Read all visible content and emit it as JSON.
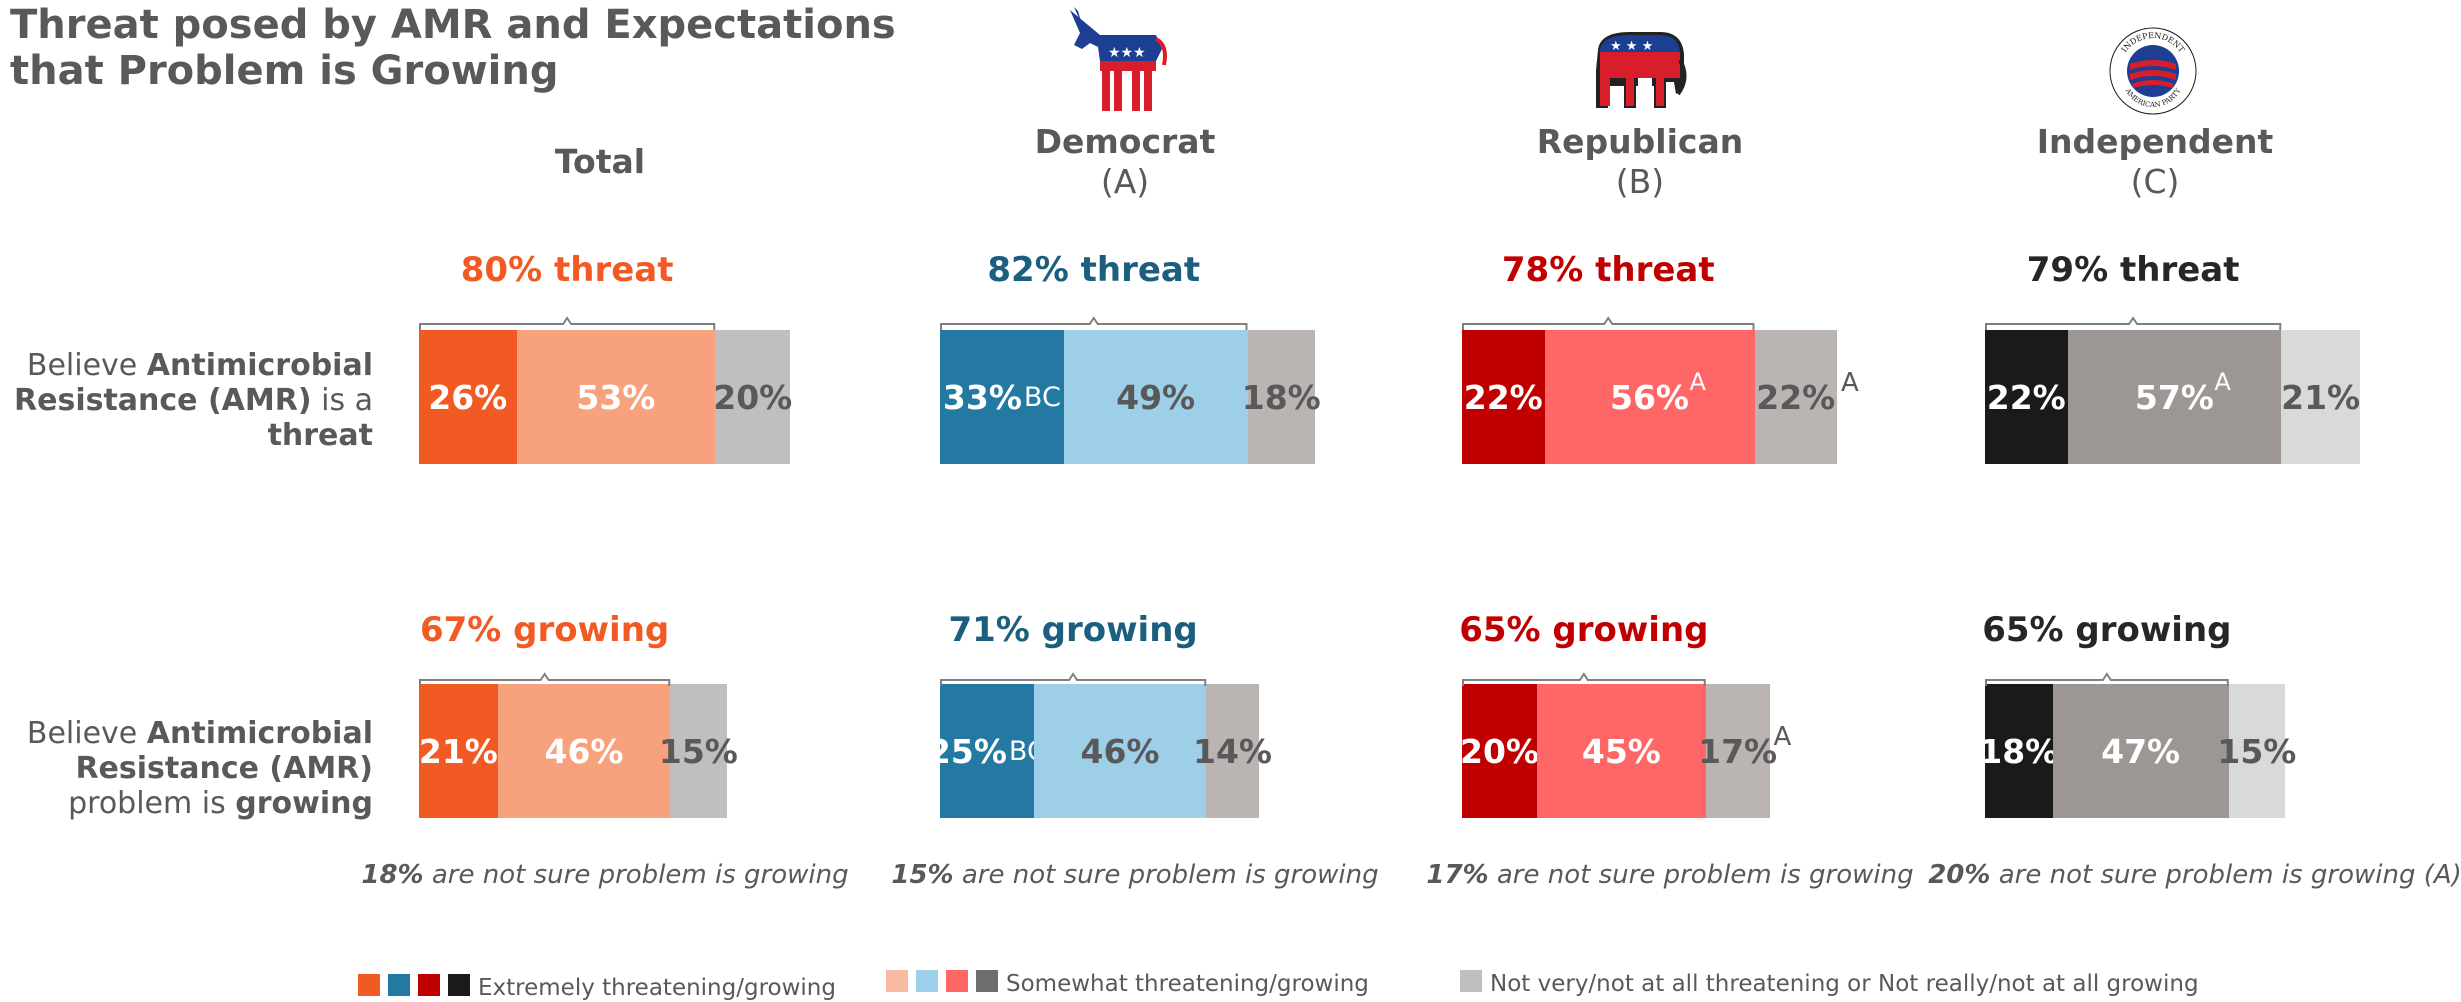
{
  "title": "Threat posed by AMR and Expectations that Problem is Growing",
  "chart_data": {
    "type": "bar",
    "orientation": "horizontal-stacked",
    "groups": [
      {
        "key": "total",
        "name": "Total",
        "code": "",
        "colors": [
          "#f15a22",
          "#f7a17d",
          "#bfbfbf"
        ],
        "summary_color": "#f15a22",
        "threat": {
          "summary": "80% threat",
          "values": [
            26,
            53,
            20
          ],
          "labels": [
            "26%",
            "53%",
            "20%"
          ],
          "sup": [
            "",
            "",
            ""
          ]
        },
        "growing": {
          "summary": "67% growing",
          "values": [
            21,
            46,
            15
          ],
          "labels": [
            "21%",
            "46%",
            "15%"
          ],
          "sup": [
            "",
            "",
            ""
          ]
        },
        "footnote_bold": "18%",
        "footnote_rest": " are not sure problem is growing"
      },
      {
        "key": "dem",
        "name": "Democrat",
        "code": "(A)",
        "colors": [
          "#2479a3",
          "#9dcfe8",
          "#bab5b3"
        ],
        "summary_color": "#1c5e7e",
        "threat": {
          "summary": "82% threat",
          "values": [
            33,
            49,
            18
          ],
          "labels": [
            "33%",
            "49%",
            "18%"
          ],
          "sup": [
            "BC",
            "",
            ""
          ]
        },
        "growing": {
          "summary": "71% growing",
          "values": [
            25,
            46,
            14
          ],
          "labels": [
            "25%",
            "46%",
            "14%"
          ],
          "sup": [
            "BC",
            "",
            ""
          ]
        },
        "footnote_bold": "15%",
        "footnote_rest": " are not sure problem is growing"
      },
      {
        "key": "rep",
        "name": "Republican",
        "code": "(B)",
        "colors": [
          "#c00000",
          "#ff6666",
          "#bab5b3"
        ],
        "summary_color": "#c00000",
        "threat": {
          "summary": "78% threat",
          "values": [
            22,
            56,
            22
          ],
          "labels": [
            "22%",
            "56%",
            "22%"
          ],
          "sup": [
            "",
            "A",
            "A"
          ]
        },
        "growing": {
          "summary": "65% growing",
          "values": [
            20,
            45,
            17
          ],
          "labels": [
            "20%",
            "45%",
            "17%"
          ],
          "sup": [
            "",
            "",
            "A"
          ]
        },
        "footnote_bold": "17%",
        "footnote_rest": " are not sure problem is growing"
      },
      {
        "key": "ind",
        "name": "Independent",
        "code": "(C)",
        "colors": [
          "#1a1a1a",
          "#9c9794",
          "#d9d9d9"
        ],
        "summary_color": "#262626",
        "threat": {
          "summary": "79% threat",
          "values": [
            22,
            57,
            21
          ],
          "labels": [
            "22%",
            "57%",
            "21%"
          ],
          "sup": [
            "",
            "A",
            ""
          ]
        },
        "growing": {
          "summary": "65% growing",
          "values": [
            18,
            47,
            15
          ],
          "labels": [
            "18%",
            "47%",
            "15%"
          ],
          "sup": [
            "",
            "",
            ""
          ]
        },
        "footnote_bold": "20%",
        "footnote_rest": " are not sure problem is growing (A)"
      }
    ],
    "row_labels": {
      "threat": {
        "pre": "Believe ",
        "bold1": "Antimicrobial Resistance (AMR)",
        "mid": " is a ",
        "bold2": "threat"
      },
      "growing": {
        "pre": "Believe ",
        "bold1": "Antimicrobial Resistance (AMR)",
        "mid": " problem is ",
        "bold2": "growing"
      }
    },
    "legend": [
      {
        "label": "Extremely threatening/growing",
        "colors": [
          "#f15a22",
          "#2479a3",
          "#c00000",
          "#1a1a1a"
        ]
      },
      {
        "label": "Somewhat threatening/growing",
        "colors": [
          "#f7b9a0",
          "#9dcfe8",
          "#ff6666",
          "#6d6d6d"
        ]
      },
      {
        "label": "Not very/not at all threatening or Not really/not at all growing",
        "colors": [
          "#bfbfbf"
        ]
      }
    ]
  },
  "logos": {
    "independent_text_top": "INDEPENDENT",
    "independent_text_bottom": "AMERICAN PARTY"
  }
}
